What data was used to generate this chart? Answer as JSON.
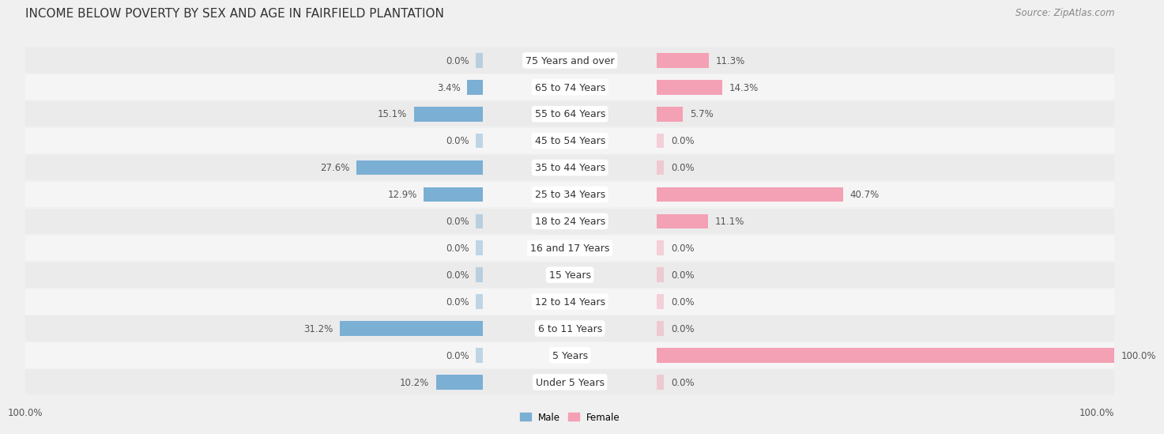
{
  "title": "INCOME BELOW POVERTY BY SEX AND AGE IN FAIRFIELD PLANTATION",
  "source": "Source: ZipAtlas.com",
  "categories": [
    "Under 5 Years",
    "5 Years",
    "6 to 11 Years",
    "12 to 14 Years",
    "15 Years",
    "16 and 17 Years",
    "18 to 24 Years",
    "25 to 34 Years",
    "35 to 44 Years",
    "45 to 54 Years",
    "55 to 64 Years",
    "65 to 74 Years",
    "75 Years and over"
  ],
  "male_values": [
    10.2,
    0.0,
    31.2,
    0.0,
    0.0,
    0.0,
    0.0,
    12.9,
    27.6,
    0.0,
    15.1,
    3.4,
    0.0
  ],
  "female_values": [
    0.0,
    100.0,
    0.0,
    0.0,
    0.0,
    0.0,
    11.1,
    40.7,
    0.0,
    0.0,
    5.7,
    14.3,
    11.3
  ],
  "male_color": "#7bafd4",
  "female_color": "#f4a0b5",
  "row_color_even": "#ebebeb",
  "row_color_odd": "#f5f5f5",
  "bg_color": "#f0f0f0",
  "label_color": "#555555",
  "cat_label_color": "#333333",
  "title_color": "#333333",
  "source_color": "#888888",
  "max_val": 100.0,
  "legend_male": "Male",
  "legend_female": "Female",
  "title_fontsize": 11,
  "source_fontsize": 8.5,
  "label_fontsize": 8.5,
  "category_fontsize": 9
}
